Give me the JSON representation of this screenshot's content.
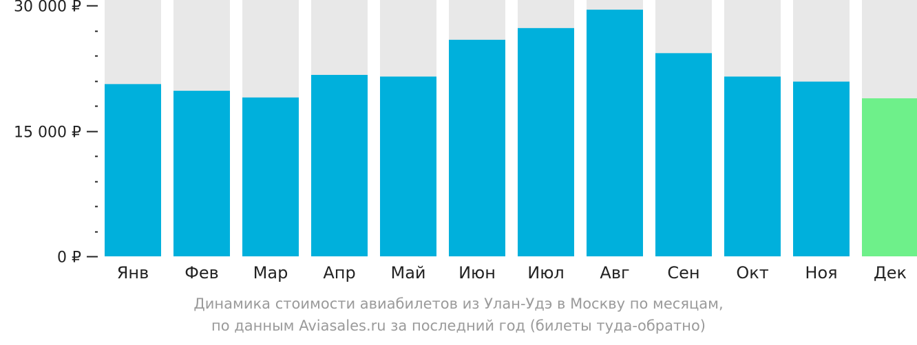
{
  "chart_data": {
    "type": "bar",
    "categories": [
      "Янв",
      "Фев",
      "Мар",
      "Апр",
      "Май",
      "Июн",
      "Июл",
      "Авг",
      "Сен",
      "Окт",
      "Ноя",
      "Дек"
    ],
    "values": [
      20600,
      19800,
      19000,
      21700,
      21500,
      25900,
      27300,
      29500,
      24300,
      21500,
      20900,
      18900
    ],
    "ylim": [
      0,
      30000
    ],
    "y_ticks": [
      {
        "value": 0,
        "label": "0 ₽"
      },
      {
        "value": 15000,
        "label": "15 000 ₽"
      },
      {
        "value": 30000,
        "label": "30 000 ₽"
      }
    ],
    "y_minor_step": 3000,
    "highlight_index": 11,
    "colors": {
      "bar": "#00b0dc",
      "highlight": "#6ef08a",
      "background_bar": "#e8e8e8",
      "axis": "#222222"
    }
  },
  "caption": {
    "line1": "Динамика стоимости авиабилетов из Улан-Удэ в Москву по месяцам,",
    "line2": "по данным Aviasales.ru за последний год (билеты туда-обратно)"
  }
}
